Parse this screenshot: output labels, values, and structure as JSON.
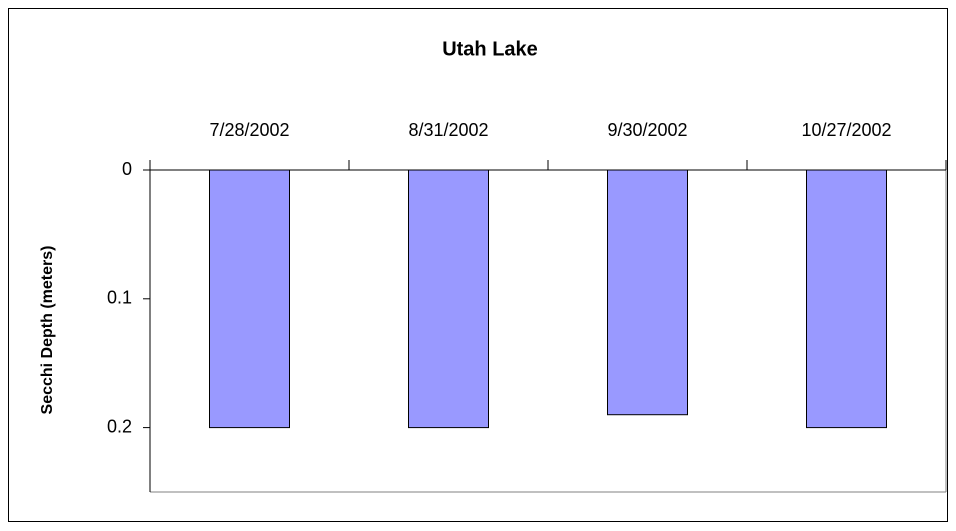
{
  "chart_data": {
    "type": "bar",
    "title": "Utah Lake",
    "y_label": "Secchi Depth (meters)",
    "categories": [
      "7/28/2002",
      "8/31/2002",
      "9/30/2002",
      "10/27/2002"
    ],
    "values": [
      0.2,
      0.2,
      0.19,
      0.2
    ],
    "color": "#9999ff",
    "ylim": [
      0,
      0.25
    ],
    "yticks": [
      0,
      0.1,
      0.2
    ],
    "y_inverted": true,
    "grid": false
  }
}
